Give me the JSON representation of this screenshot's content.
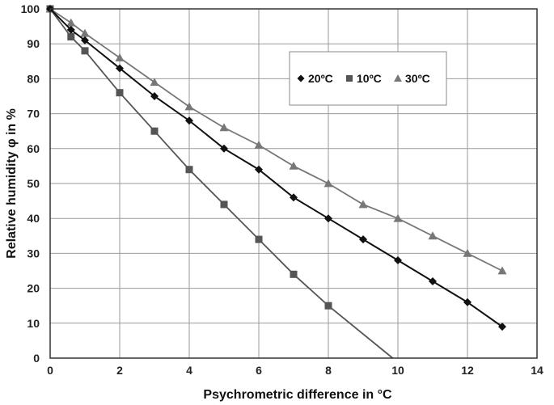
{
  "chart_data": {
    "type": "line",
    "title": "",
    "xlabel": "Psychrometric difference in °C",
    "ylabel": "Relative humidity φ in %",
    "xlim": [
      0,
      14
    ],
    "ylim": [
      0,
      100
    ],
    "xticks": [
      0,
      2,
      4,
      6,
      8,
      10,
      12,
      14
    ],
    "yticks": [
      0,
      10,
      20,
      30,
      40,
      50,
      60,
      70,
      80,
      90,
      100
    ],
    "grid": true,
    "legend_position": "top-right",
    "series": [
      {
        "name": "20ºC",
        "marker": "diamond",
        "color": "#111111",
        "x": [
          0,
          0.6,
          1,
          2,
          3,
          4,
          5,
          6,
          7,
          8,
          9,
          10,
          11,
          12,
          13
        ],
        "y": [
          100,
          94,
          91,
          83,
          75,
          68,
          60,
          54,
          46,
          40,
          34,
          28,
          22,
          16,
          9
        ]
      },
      {
        "name": "10ºC",
        "marker": "square",
        "color": "#555555",
        "x": [
          0,
          0.6,
          1,
          2,
          3,
          4,
          5,
          6,
          7,
          8,
          9.85
        ],
        "y": [
          100,
          92,
          88,
          76,
          65,
          54,
          44,
          34,
          24,
          15,
          0
        ]
      },
      {
        "name": "30ºC",
        "marker": "triangle",
        "color": "#777777",
        "x": [
          0,
          0.6,
          1,
          2,
          3,
          4,
          5,
          6,
          7,
          8,
          9,
          10,
          11,
          12,
          13
        ],
        "y": [
          100,
          96,
          93,
          86,
          79,
          72,
          66,
          61,
          55,
          50,
          44,
          40,
          35,
          30,
          25
        ]
      }
    ]
  }
}
